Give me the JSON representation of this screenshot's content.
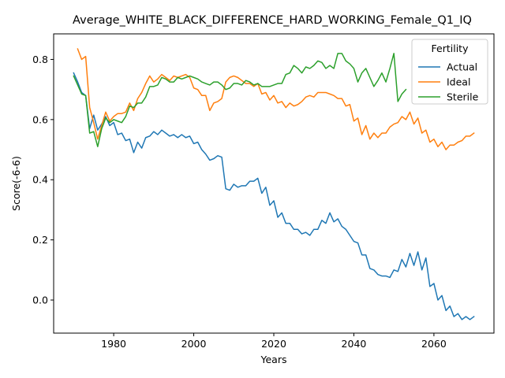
{
  "chart_data": {
    "type": "line",
    "title": "Average_WHITE_BLACK_DIFFERENCE_HARD_WORKING_Female_Q1_IQ",
    "xlabel": "Years",
    "ylabel": "Score(-6-6)",
    "xlim": [
      1965,
      2075
    ],
    "ylim": [
      -0.11,
      0.885
    ],
    "xticks": [
      1980,
      2000,
      2020,
      2040,
      2060
    ],
    "yticks": [
      0.0,
      0.2,
      0.4,
      0.6,
      0.8
    ],
    "ytick_labels": [
      "0.0",
      "0.2",
      "0.4",
      "0.6",
      "0.8"
    ],
    "grid": false,
    "legend": {
      "title": "Fertility",
      "position": "top-right"
    },
    "series": [
      {
        "name": "Actual",
        "color": "#1f77b4",
        "x": [
          1970,
          1971,
          1972,
          1973,
          1974,
          1975,
          1976,
          1977,
          1978,
          1979,
          1980,
          1981,
          1982,
          1983,
          1984,
          1985,
          1986,
          1987,
          1988,
          1989,
          1990,
          1991,
          1992,
          1993,
          1994,
          1995,
          1996,
          1997,
          1998,
          1999,
          2000,
          2001,
          2002,
          2003,
          2004,
          2005,
          2006,
          2007,
          2008,
          2009,
          2010,
          2011,
          2012,
          2013,
          2014,
          2015,
          2016,
          2017,
          2018,
          2019,
          2020,
          2021,
          2022,
          2023,
          2024,
          2025,
          2026,
          2027,
          2028,
          2029,
          2030,
          2031,
          2032,
          2033,
          2034,
          2035,
          2036,
          2037,
          2038,
          2039,
          2040,
          2041,
          2042,
          2043,
          2044,
          2045,
          2046,
          2047,
          2048,
          2049,
          2050,
          2051,
          2052,
          2053,
          2054,
          2055,
          2056,
          2057,
          2058,
          2059,
          2060,
          2061,
          2062,
          2063,
          2064,
          2065,
          2066,
          2067,
          2068,
          2069,
          2070
        ],
        "values": [
          0.755,
          0.725,
          0.69,
          0.68,
          0.57,
          0.615,
          0.565,
          0.585,
          0.61,
          0.58,
          0.59,
          0.55,
          0.555,
          0.53,
          0.535,
          0.49,
          0.525,
          0.505,
          0.54,
          0.545,
          0.56,
          0.55,
          0.565,
          0.555,
          0.545,
          0.55,
          0.54,
          0.55,
          0.54,
          0.545,
          0.52,
          0.525,
          0.5,
          0.485,
          0.465,
          0.47,
          0.48,
          0.475,
          0.37,
          0.365,
          0.385,
          0.375,
          0.38,
          0.38,
          0.395,
          0.395,
          0.405,
          0.355,
          0.375,
          0.315,
          0.33,
          0.275,
          0.29,
          0.255,
          0.255,
          0.235,
          0.235,
          0.22,
          0.225,
          0.215,
          0.235,
          0.235,
          0.265,
          0.255,
          0.29,
          0.26,
          0.27,
          0.245,
          0.235,
          0.215,
          0.195,
          0.19,
          0.15,
          0.15,
          0.105,
          0.1,
          0.085,
          0.08,
          0.08,
          0.075,
          0.1,
          0.095,
          0.135,
          0.11,
          0.155,
          0.115,
          0.16,
          0.1,
          0.14,
          0.045,
          0.055,
          0.0,
          0.015,
          -0.035,
          -0.02,
          -0.055,
          -0.045,
          -0.065,
          -0.055,
          -0.065,
          -0.055
        ]
      },
      {
        "name": "Ideal",
        "color": "#ff7f0e",
        "x": [
          1971,
          1972,
          1973,
          1974,
          1975,
          1976,
          1977,
          1978,
          1979,
          1980,
          1981,
          1982,
          1983,
          1984,
          1985,
          1986,
          1987,
          1988,
          1989,
          1990,
          1991,
          1992,
          1993,
          1994,
          1995,
          1996,
          1997,
          1998,
          1999,
          2000,
          2001,
          2002,
          2003,
          2004,
          2005,
          2006,
          2007,
          2008,
          2009,
          2010,
          2011,
          2012,
          2013,
          2014,
          2015,
          2016,
          2017,
          2018,
          2019,
          2020,
          2021,
          2022,
          2023,
          2024,
          2025,
          2026,
          2027,
          2028,
          2029,
          2030,
          2031,
          2032,
          2033,
          2034,
          2035,
          2036,
          2037,
          2038,
          2039,
          2040,
          2041,
          2042,
          2043,
          2044,
          2045,
          2046,
          2047,
          2048,
          2049,
          2050,
          2051,
          2052,
          2053,
          2054,
          2055,
          2056,
          2057,
          2058,
          2059,
          2060,
          2061,
          2062,
          2063,
          2064,
          2065,
          2066,
          2067,
          2068,
          2069,
          2070
        ],
        "values": [
          0.835,
          0.8,
          0.81,
          0.64,
          0.59,
          0.535,
          0.58,
          0.625,
          0.595,
          0.61,
          0.62,
          0.62,
          0.625,
          0.655,
          0.63,
          0.67,
          0.69,
          0.72,
          0.745,
          0.725,
          0.735,
          0.75,
          0.74,
          0.73,
          0.745,
          0.74,
          0.745,
          0.75,
          0.74,
          0.705,
          0.7,
          0.68,
          0.68,
          0.63,
          0.655,
          0.66,
          0.67,
          0.725,
          0.74,
          0.745,
          0.74,
          0.73,
          0.72,
          0.72,
          0.71,
          0.72,
          0.685,
          0.69,
          0.665,
          0.68,
          0.655,
          0.66,
          0.64,
          0.655,
          0.645,
          0.65,
          0.66,
          0.675,
          0.68,
          0.675,
          0.69,
          0.69,
          0.69,
          0.685,
          0.68,
          0.67,
          0.67,
          0.645,
          0.65,
          0.595,
          0.605,
          0.55,
          0.58,
          0.535,
          0.555,
          0.54,
          0.555,
          0.555,
          0.575,
          0.585,
          0.59,
          0.61,
          0.6,
          0.625,
          0.585,
          0.605,
          0.555,
          0.565,
          0.525,
          0.535,
          0.51,
          0.525,
          0.5,
          0.515,
          0.515,
          0.525,
          0.53,
          0.545,
          0.545,
          0.555
        ]
      },
      {
        "name": "Sterile",
        "color": "#2ca02c",
        "x": [
          1970,
          1971,
          1972,
          1973,
          1974,
          1975,
          1976,
          1977,
          1978,
          1979,
          1980,
          1981,
          1982,
          1983,
          1984,
          1985,
          1986,
          1987,
          1988,
          1989,
          1990,
          1991,
          1992,
          1993,
          1994,
          1995,
          1996,
          1997,
          1998,
          1999,
          2000,
          2001,
          2002,
          2003,
          2004,
          2005,
          2006,
          2007,
          2008,
          2009,
          2010,
          2011,
          2012,
          2013,
          2014,
          2015,
          2016,
          2017,
          2018,
          2019,
          2020,
          2021,
          2022,
          2023,
          2024,
          2025,
          2026,
          2027,
          2028,
          2029,
          2030,
          2031,
          2032,
          2033,
          2034,
          2035,
          2036,
          2037,
          2038,
          2039,
          2040,
          2041,
          2042,
          2043,
          2044,
          2045,
          2046,
          2047,
          2048,
          2049,
          2050,
          2051,
          2052,
          2053
        ],
        "values": [
          0.745,
          0.715,
          0.685,
          0.68,
          0.555,
          0.56,
          0.51,
          0.57,
          0.605,
          0.59,
          0.6,
          0.595,
          0.59,
          0.61,
          0.645,
          0.64,
          0.655,
          0.655,
          0.675,
          0.71,
          0.71,
          0.715,
          0.74,
          0.735,
          0.725,
          0.725,
          0.74,
          0.735,
          0.74,
          0.745,
          0.74,
          0.735,
          0.725,
          0.72,
          0.715,
          0.725,
          0.725,
          0.715,
          0.7,
          0.705,
          0.72,
          0.72,
          0.715,
          0.73,
          0.725,
          0.715,
          0.72,
          0.71,
          0.71,
          0.71,
          0.715,
          0.72,
          0.72,
          0.75,
          0.755,
          0.78,
          0.77,
          0.755,
          0.775,
          0.77,
          0.78,
          0.795,
          0.79,
          0.77,
          0.78,
          0.77,
          0.82,
          0.82,
          0.795,
          0.785,
          0.77,
          0.725,
          0.755,
          0.77,
          0.74,
          0.71,
          0.73,
          0.755,
          0.725,
          0.77,
          0.82,
          0.66,
          0.685,
          0.7
        ]
      }
    ]
  }
}
